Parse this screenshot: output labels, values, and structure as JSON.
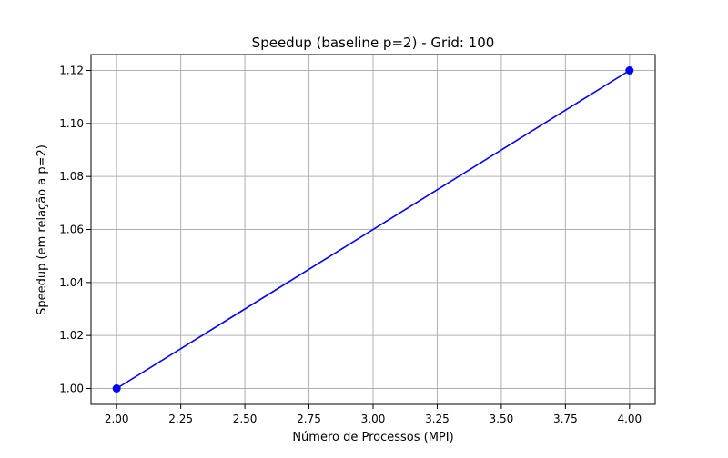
{
  "chart_data": {
    "type": "line",
    "title": "Speedup (baseline p=2) - Grid: 100",
    "xlabel": "Número de Processos (MPI)",
    "ylabel": "Speedup (em relação a p=2)",
    "xlim": [
      1.9,
      4.1
    ],
    "ylim": [
      0.994,
      1.126
    ],
    "x_ticks": [
      2.0,
      2.25,
      2.5,
      2.75,
      3.0,
      3.25,
      3.5,
      3.75,
      4.0
    ],
    "x_tick_labels": [
      "2.00",
      "2.25",
      "2.50",
      "2.75",
      "3.00",
      "3.25",
      "3.50",
      "3.75",
      "4.00"
    ],
    "y_ticks": [
      1.0,
      1.02,
      1.04,
      1.06,
      1.08,
      1.1,
      1.12
    ],
    "y_tick_labels": [
      "1.00",
      "1.02",
      "1.04",
      "1.06",
      "1.08",
      "1.10",
      "1.12"
    ],
    "grid": true,
    "series": [
      {
        "x": [
          2,
          4
        ],
        "values": [
          1.0,
          1.12
        ],
        "color": "#0000ff",
        "marker": "circle"
      }
    ]
  }
}
